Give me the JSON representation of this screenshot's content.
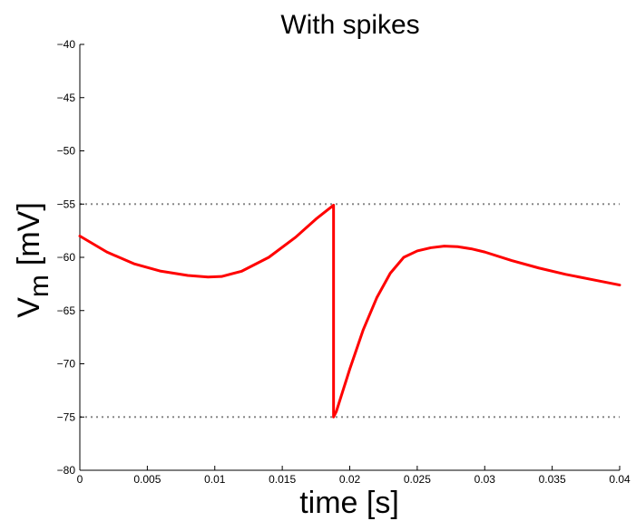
{
  "chart_data": {
    "type": "line",
    "title": "With spikes",
    "xlabel": "time [s]",
    "ylabel_main": "V",
    "ylabel_sub": "m",
    "ylabel_unit": "[mV]",
    "xlim": [
      0,
      0.04
    ],
    "ylim": [
      -80,
      -40
    ],
    "x_ticks": [
      0,
      0.005,
      0.01,
      0.015,
      0.02,
      0.025,
      0.03,
      0.035,
      0.04
    ],
    "x_tick_labels": [
      "0",
      "0.005",
      "0.01",
      "0.015",
      "0.02",
      "0.025",
      "0.03",
      "0.035",
      "0.04"
    ],
    "y_ticks": [
      -80,
      -75,
      -70,
      -65,
      -60,
      -55,
      -50,
      -45,
      -40
    ],
    "y_tick_labels": [
      "−80",
      "−75",
      "−70",
      "−65",
      "−60",
      "−55",
      "−50",
      "−45",
      "−40"
    ],
    "grid": false,
    "legend": "none",
    "reference_lines": [
      {
        "y": -55,
        "style": "dotted",
        "color": "#888888"
      },
      {
        "y": -75,
        "style": "dotted",
        "color": "#888888"
      }
    ],
    "series": [
      {
        "color": "#ff0000",
        "x": [
          0,
          0.002,
          0.004,
          0.006,
          0.008,
          0.0095,
          0.0105,
          0.012,
          0.014,
          0.016,
          0.0175,
          0.0188,
          0.0188,
          0.019,
          0.02,
          0.021,
          0.022,
          0.023,
          0.024,
          0.025,
          0.026,
          0.027,
          0.028,
          0.029,
          0.03,
          0.032,
          0.034,
          0.036,
          0.038,
          0.04
        ],
        "y": [
          -58.0,
          -59.5,
          -60.6,
          -61.3,
          -61.7,
          -61.85,
          -61.8,
          -61.3,
          -60.0,
          -58.1,
          -56.4,
          -55.1,
          -75.0,
          -74.5,
          -70.5,
          -66.8,
          -63.8,
          -61.5,
          -60.0,
          -59.4,
          -59.1,
          -58.95,
          -59.0,
          -59.2,
          -59.5,
          -60.3,
          -61.0,
          -61.6,
          -62.1,
          -62.6
        ]
      }
    ],
    "colors": {
      "axis": "#000000",
      "reference": "#888888",
      "series": "#ff0000"
    }
  }
}
